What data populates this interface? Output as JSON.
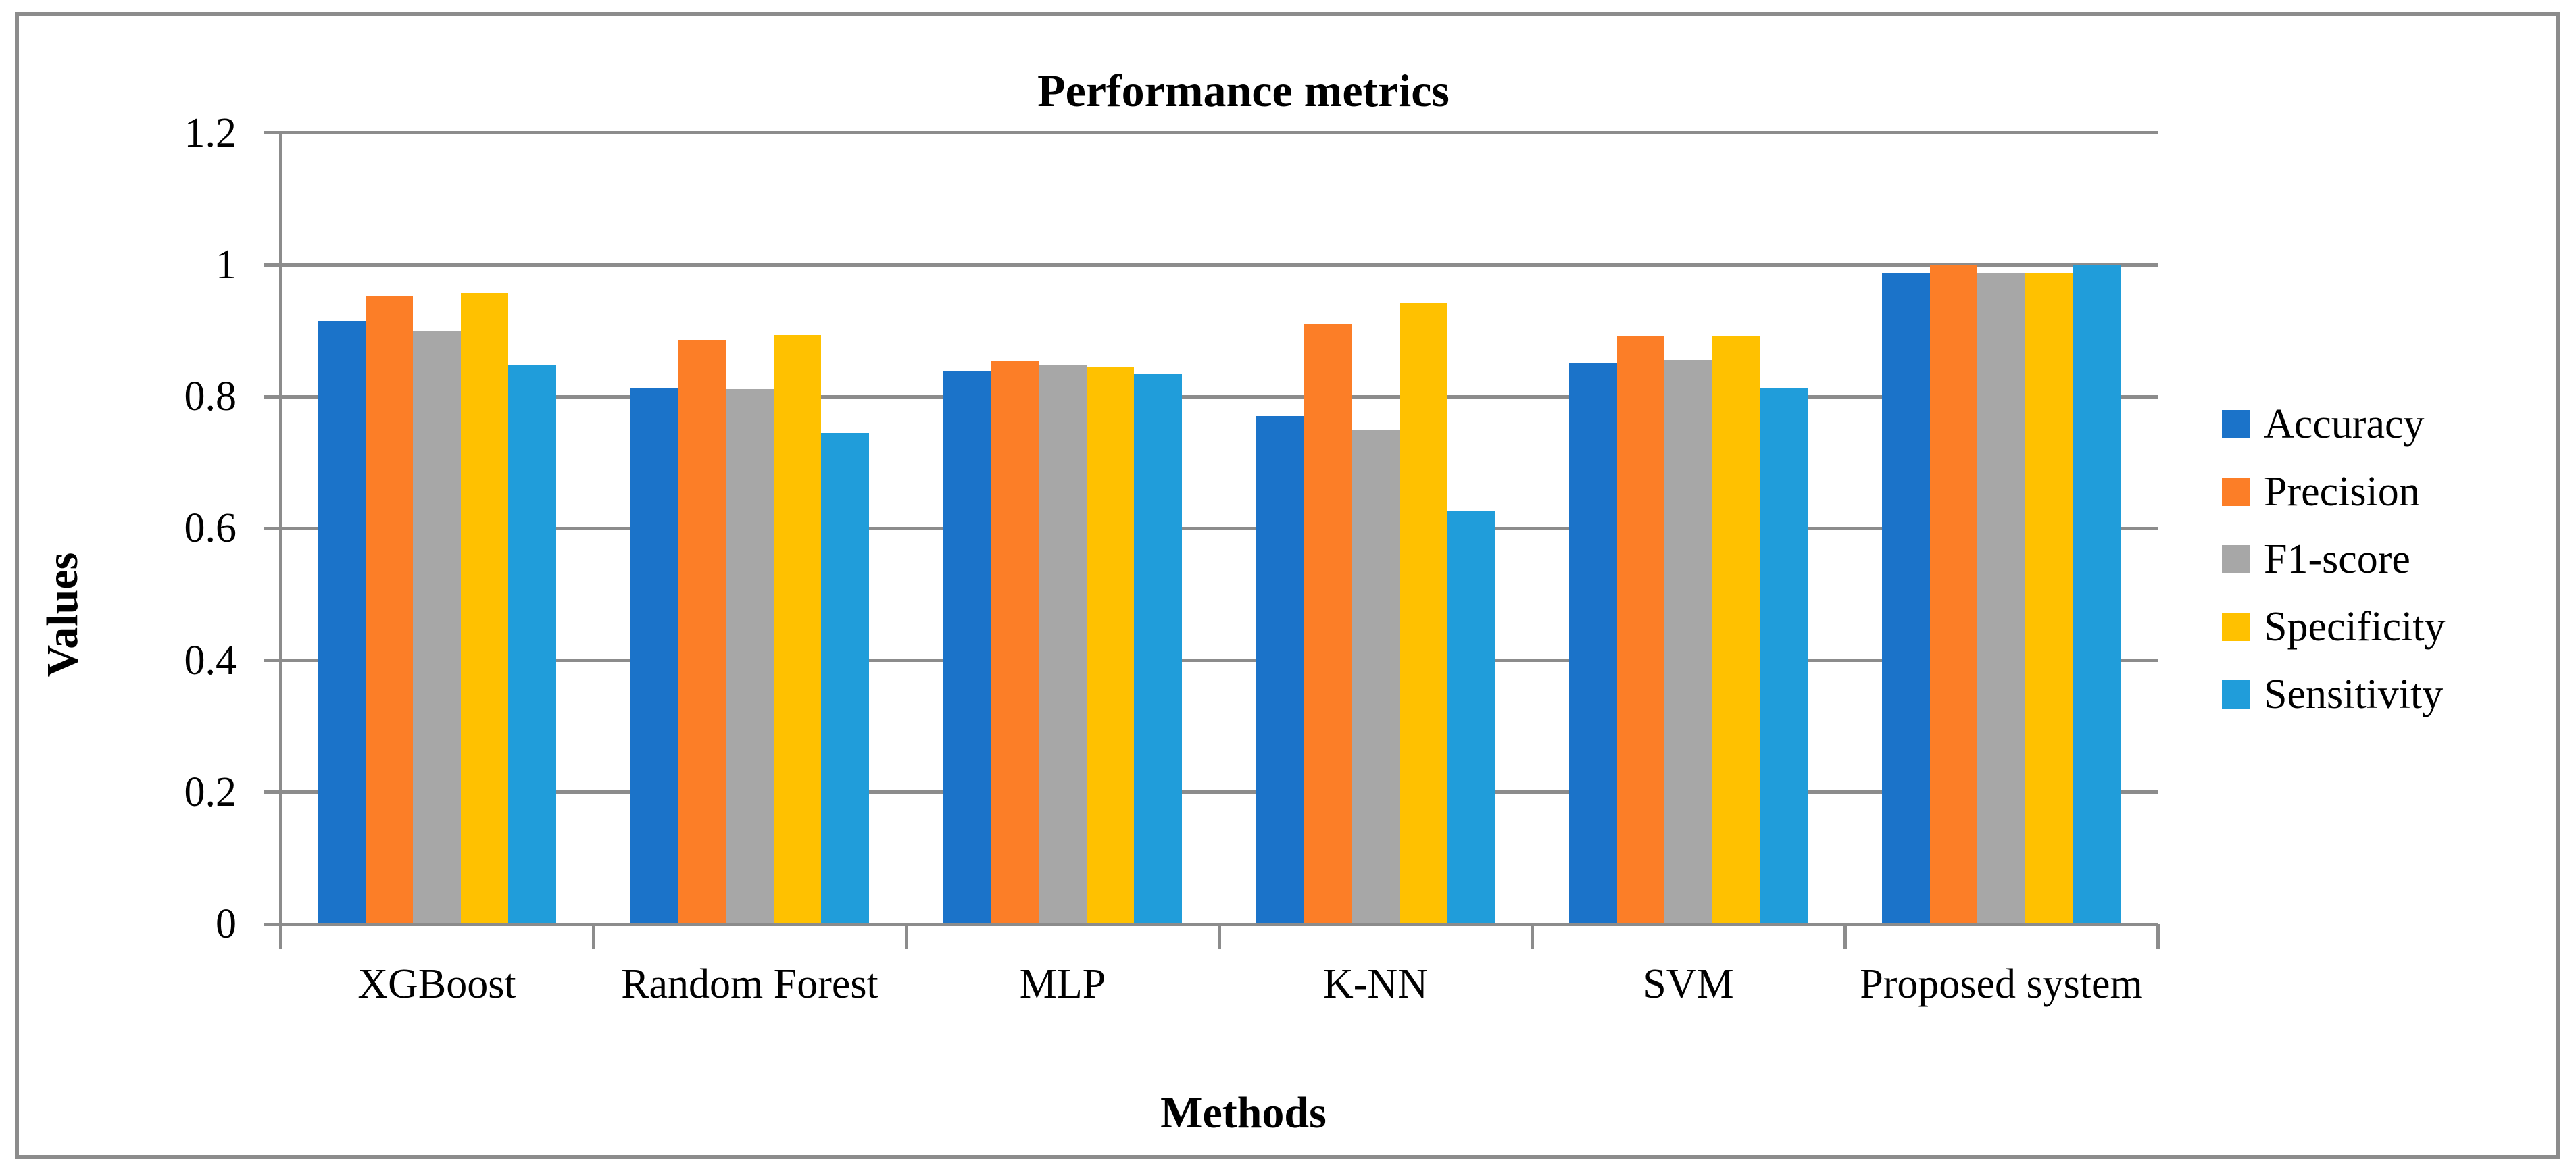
{
  "title": "Performance metrics",
  "x_axis_title": "Methods",
  "y_axis_title": "Values",
  "colors": {
    "accuracy": "#1B73C9",
    "precision": "#FC7E27",
    "f1_score": "#A7A7A7",
    "specificity": "#FFC100",
    "sensitivity": "#209DDA",
    "grid": "#8C8C8C",
    "frame_border": "#8C8C8C",
    "background": "#FFFFFF",
    "text": "#000000"
  },
  "chart_data": {
    "type": "bar",
    "title": "Performance metrics",
    "xlabel": "Methods",
    "ylabel": "Values",
    "categories": [
      "XGBoost",
      "Random Forest",
      "MLP",
      "K-NN",
      "SVM",
      "Proposed system"
    ],
    "series": [
      {
        "name": "Accuracy",
        "color": "#1B73C9",
        "values": [
          0.915,
          0.814,
          0.839,
          0.771,
          0.85,
          0.988
        ]
      },
      {
        "name": "Precision",
        "color": "#FC7E27",
        "values": [
          0.953,
          0.885,
          0.854,
          0.91,
          0.892,
          1.0
        ]
      },
      {
        "name": "F1-score",
        "color": "#A7A7A7",
        "values": [
          0.9,
          0.811,
          0.847,
          0.749,
          0.856,
          0.988
        ]
      },
      {
        "name": "Specificity",
        "color": "#FFC100",
        "values": [
          0.957,
          0.893,
          0.844,
          0.943,
          0.892,
          0.988
        ]
      },
      {
        "name": "Sensitivity",
        "color": "#209DDA",
        "values": [
          0.847,
          0.745,
          0.835,
          0.626,
          0.814,
          1.0
        ]
      }
    ],
    "y_ticks": [
      0,
      0.2,
      0.4,
      0.6,
      0.8,
      1,
      1.2
    ],
    "ylim": [
      0,
      1.2
    ],
    "grid": true,
    "legend_position": "right",
    "legend_entries": [
      "Accuracy",
      "Precision",
      "F1-score",
      "Specificity",
      "Sensitivity"
    ]
  }
}
